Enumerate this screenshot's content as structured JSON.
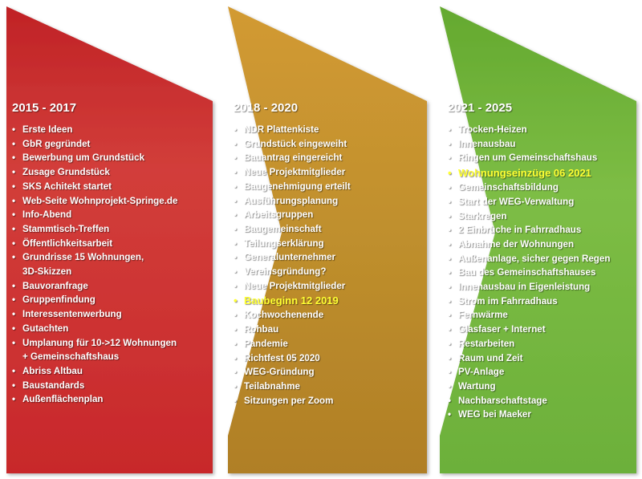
{
  "phases": [
    {
      "title": "2015 - 2017",
      "color": "#c8282b",
      "items": [
        {
          "text": "Erste Ideen"
        },
        {
          "text": "GbR gegründet"
        },
        {
          "text": "Bewerbung um Grundstück"
        },
        {
          "text": "Zusage Grundstück"
        },
        {
          "text": "SKS Achitekt startet"
        },
        {
          "text": "Web-Seite Wohnprojekt-Springe.de"
        },
        {
          "text": "Info-Abend"
        },
        {
          "text": "Stammtisch-Treffen"
        },
        {
          "text": "Öffentlichkeitsarbeit"
        },
        {
          "text": "Grundrisse 15 Wohnungen,\n3D-Skizzen"
        },
        {
          "text": "Bauvoranfrage"
        },
        {
          "text": "Gruppenfindung"
        },
        {
          "text": "Interessentenwerbung"
        },
        {
          "text": "Gutachten"
        },
        {
          "text": "Umplanung für 10->12 Wohnungen\n+ Gemeinschaftshaus"
        },
        {
          "text": "Abriss Altbau"
        },
        {
          "text": "Baustandards"
        },
        {
          "text": "Außenflächenplan"
        }
      ]
    },
    {
      "title": "2018 - 2020",
      "color": "#b98a28",
      "items": [
        {
          "text": "NDR Plattenkiste"
        },
        {
          "text": "Grundstück eingeweiht"
        },
        {
          "text": "Bauantrag eingereicht"
        },
        {
          "text": "Neue Projektmitglieder"
        },
        {
          "text": "Baugenehmigung erteilt"
        },
        {
          "text": "Ausführungsplanung"
        },
        {
          "text": "Arbeitsgruppen"
        },
        {
          "text": "Baugemeinschaft"
        },
        {
          "text": "Teilungserklärung"
        },
        {
          "text": "Generalunternehmer"
        },
        {
          "text": "Vereinsgründung?"
        },
        {
          "text": "Neue Projektmitglieder"
        },
        {
          "text": "Baubeginn 12 2019",
          "highlight": true
        },
        {
          "text": "Kochwochenende"
        },
        {
          "text": "Rohbau"
        },
        {
          "text": "Pandemie"
        },
        {
          "text": "Richtfest 05 2020"
        },
        {
          "text": "WEG-Gründung"
        },
        {
          "text": "Teilabnahme"
        },
        {
          "text": "Sitzungen per Zoom"
        }
      ]
    },
    {
      "title": "2021 - 2025",
      "color": "#6eb23a",
      "items": [
        {
          "text": "Trocken-Heizen"
        },
        {
          "text": "Innenausbau"
        },
        {
          "text": "Ringen um Gemeinschaftshaus"
        },
        {
          "text": "Wohnungseinzüge 06 2021",
          "highlight": true
        },
        {
          "text": "Gemeinschaftsbildung"
        },
        {
          "text": "Start der WEG-Verwaltung"
        },
        {
          "text": "Starkregen"
        },
        {
          "text": "2 Einbrüche in Fahrradhaus"
        },
        {
          "text": "Abnahme der Wohnungen"
        },
        {
          "text": "Außenanlage, sicher gegen Regen"
        },
        {
          "text": "Bau des Gemeinschaftshauses"
        },
        {
          "text": "Innenausbau in Eigenleistung"
        },
        {
          "text": "Strom im Fahrradhaus"
        },
        {
          "text": "Fernwärme"
        },
        {
          "text": "Glasfaser + Internet"
        },
        {
          "text": "Restarbeiten"
        },
        {
          "text": "Raum und Zeit"
        },
        {
          "text": "PV-Anlage"
        },
        {
          "text": "Wartung"
        },
        {
          "text": "Nachbarschaftstage"
        },
        {
          "text": "WEG bei Maeker"
        }
      ]
    }
  ]
}
